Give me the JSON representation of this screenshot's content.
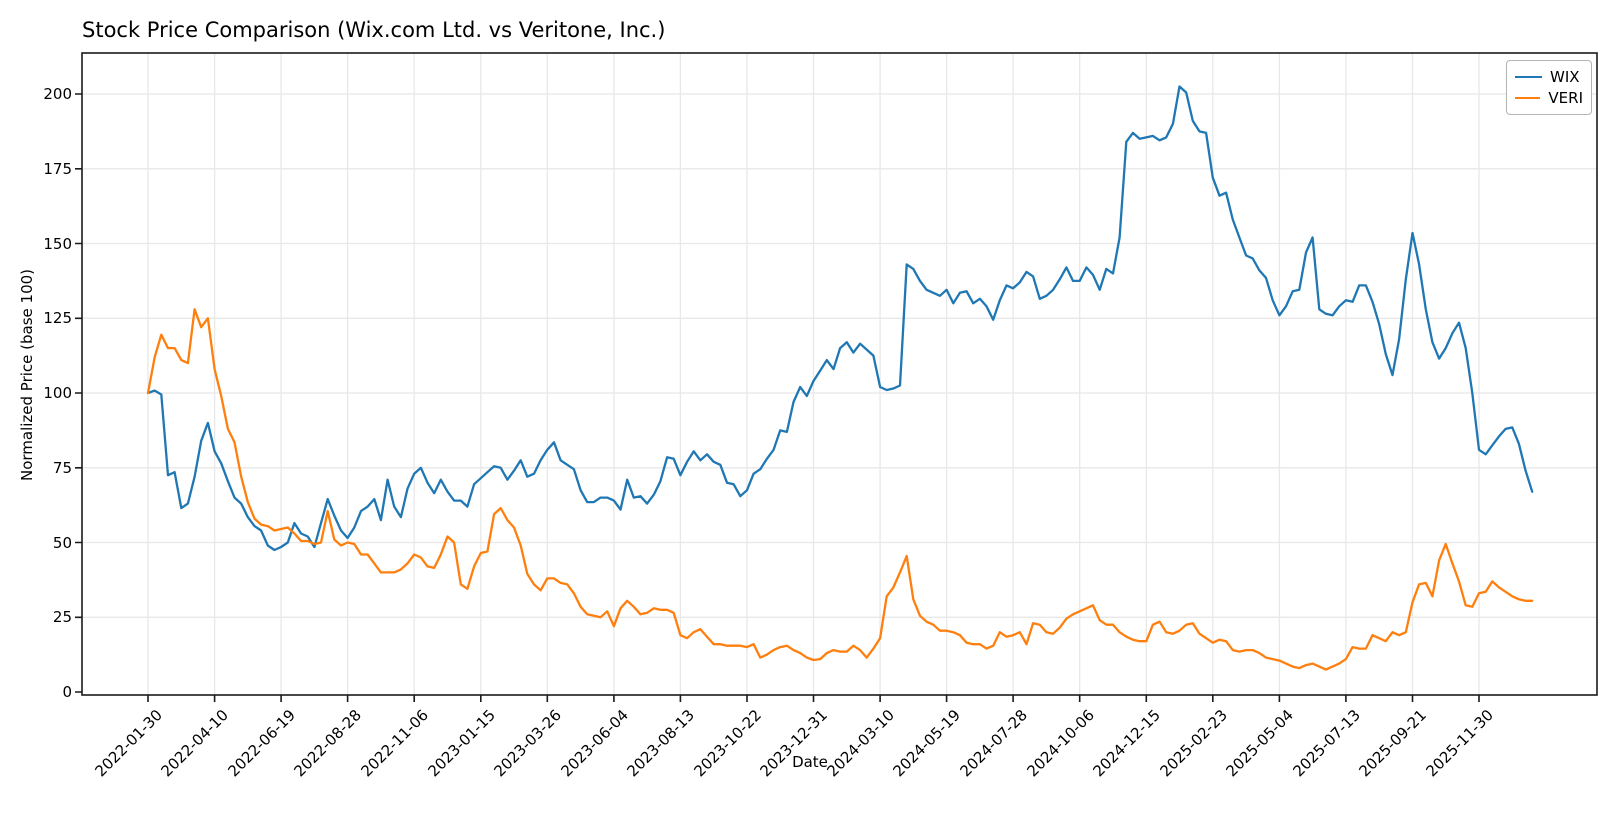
{
  "title": "Stock Price Comparison (Wix.com Ltd. vs Veritone, Inc.)",
  "chart_data": {
    "type": "line",
    "title": "Stock Price Comparison (Wix.com Ltd. vs Veritone, Inc.)",
    "xlabel": "Date",
    "ylabel": "Normalized Price (base 100)",
    "grid": true,
    "legend_position": "upper right",
    "x_unit": "weekly samples starting 2022-01-30",
    "ylim": [
      0,
      213
    ],
    "y_ticks": [
      0,
      25,
      50,
      75,
      100,
      125,
      150,
      175,
      200
    ],
    "x_tick_weeks": [
      0,
      10,
      20,
      30,
      40,
      50,
      60,
      70,
      80,
      90,
      100,
      110,
      120,
      130,
      140,
      150,
      160,
      170,
      180,
      190,
      200
    ],
    "x_tick_labels": [
      "2022-01-30",
      "2022-04-10",
      "2022-06-19",
      "2022-08-28",
      "2022-11-06",
      "2023-01-15",
      "2023-03-26",
      "2023-06-04",
      "2023-08-13",
      "2023-10-22",
      "2023-12-31",
      "2024-03-10",
      "2024-05-19",
      "2024-07-28",
      "2024-10-06",
      "2024-12-15",
      "2025-02-23",
      "2025-05-04",
      "2025-07-13",
      "2025-09-21",
      "2025-11-30"
    ],
    "series": [
      {
        "name": "WIX",
        "color": "#1f77b4",
        "values": [
          100,
          100.8,
          99.5,
          72.5,
          73.5,
          61.5,
          63,
          72,
          84,
          90,
          80.5,
          76.5,
          70.5,
          65,
          63,
          58.5,
          55.5,
          54,
          49,
          47.5,
          48.5,
          50,
          56.5,
          53,
          52,
          48.5,
          56.5,
          64.5,
          59,
          54,
          51.5,
          55,
          60.5,
          62,
          64.5,
          57.5,
          71,
          62,
          58.5,
          68,
          73,
          75,
          70,
          66.5,
          71,
          67,
          64,
          64,
          62,
          69.5,
          71.5,
          73.5,
          75.5,
          75,
          71,
          74,
          77.5,
          72,
          73,
          77.5,
          81,
          83.5,
          77.5,
          76,
          74.5,
          67.5,
          63.5,
          63.5,
          65,
          65,
          64,
          61,
          71,
          65,
          65.5,
          63,
          66,
          70.5,
          78.5,
          78,
          72.5,
          77,
          80.5,
          77.5,
          79.5,
          77,
          76,
          70,
          69.5,
          65.5,
          67.5,
          73,
          74.5,
          78,
          81,
          87.5,
          87,
          97,
          102,
          99,
          104,
          107.5,
          111,
          108,
          115,
          117,
          113.5,
          116.5,
          114.5,
          112.5,
          102,
          101,
          101.5,
          102.5,
          143,
          141.5,
          137.5,
          134.5,
          133.5,
          132.5,
          134.5,
          130,
          133.5,
          134,
          130,
          131.5,
          129,
          124.5,
          131,
          136,
          135,
          137,
          140.5,
          139,
          131.5,
          132.5,
          134.5,
          138,
          142,
          137.5,
          137.5,
          142,
          139.5,
          134.5,
          141.5,
          140,
          152,
          184,
          187,
          185,
          185.5,
          186,
          184.5,
          185.5,
          190,
          202.5,
          200.5,
          191,
          187.5,
          187,
          172,
          166,
          167,
          158,
          152,
          146,
          145,
          141,
          138.5,
          131,
          126,
          129,
          134,
          134.5,
          147,
          152,
          128,
          126.5,
          126,
          129,
          131,
          130.5,
          136,
          136,
          130.5,
          123,
          113,
          106,
          118,
          138,
          153.5,
          143,
          128,
          117,
          111.5,
          115,
          120,
          123.5,
          115,
          100,
          81,
          79.5,
          82.5,
          85.5,
          88,
          88.5,
          83,
          74,
          67
        ]
      },
      {
        "name": "VERI",
        "color": "#ff7f0e",
        "values": [
          100,
          112,
          119.5,
          115,
          115,
          111,
          110,
          128,
          122,
          125,
          108,
          99,
          88,
          83.5,
          72,
          63.5,
          58,
          56,
          55.5,
          54,
          54.5,
          55,
          53,
          50.5,
          50.5,
          49.5,
          50,
          60.5,
          51,
          49,
          50,
          49.5,
          46,
          46,
          43,
          40,
          40,
          40,
          41,
          43,
          46,
          45,
          42,
          41.5,
          46,
          52,
          50,
          36,
          34.5,
          42,
          46.5,
          47,
          59.5,
          61.5,
          57.5,
          55,
          49,
          39.5,
          36,
          34,
          38,
          38,
          36.5,
          36,
          33,
          28.5,
          26,
          25.5,
          25,
          27,
          22,
          28,
          30.5,
          28.5,
          26,
          26.5,
          28,
          27.5,
          27.5,
          26.5,
          19,
          18,
          20,
          21,
          18.5,
          16,
          16,
          15.5,
          15.5,
          15.5,
          15,
          16,
          11.5,
          12.5,
          14,
          15,
          15.5,
          14,
          13,
          11.5,
          10.7,
          11,
          13,
          14,
          13.5,
          13.5,
          15.5,
          14,
          11.5,
          14.5,
          18,
          32,
          35,
          40,
          45.5,
          31,
          25.5,
          23.5,
          22.5,
          20.5,
          20.5,
          20,
          19,
          16.5,
          16,
          16,
          14.5,
          15.5,
          20,
          18.5,
          19,
          20,
          16,
          23,
          22.5,
          20,
          19.5,
          21.5,
          24.5,
          26,
          27,
          28,
          29,
          24,
          22.5,
          22.5,
          20,
          18.5,
          17.5,
          17,
          17,
          22.5,
          23.5,
          20,
          19.5,
          20.5,
          22.5,
          23,
          19.5,
          18,
          16.5,
          17.5,
          17,
          14,
          13.5,
          14,
          14,
          13,
          11.5,
          11,
          10.5,
          9.5,
          8.5,
          8,
          9,
          9.5,
          8.5,
          7.5,
          8.5,
          9.5,
          11,
          15,
          14.5,
          14.5,
          19,
          18,
          17,
          20,
          19,
          20,
          30,
          36,
          36.5,
          32,
          44,
          49.5,
          43,
          37,
          29,
          28.5,
          33,
          33.5,
          37,
          35,
          33.5,
          32,
          31,
          30.5,
          30.5
        ]
      }
    ]
  },
  "colors": {
    "wix_line": "#1f77b4",
    "veri_line": "#ff7f0e",
    "grid": "#e8e8e8",
    "spine": "#1a1a1a",
    "background": "#ffffff"
  }
}
